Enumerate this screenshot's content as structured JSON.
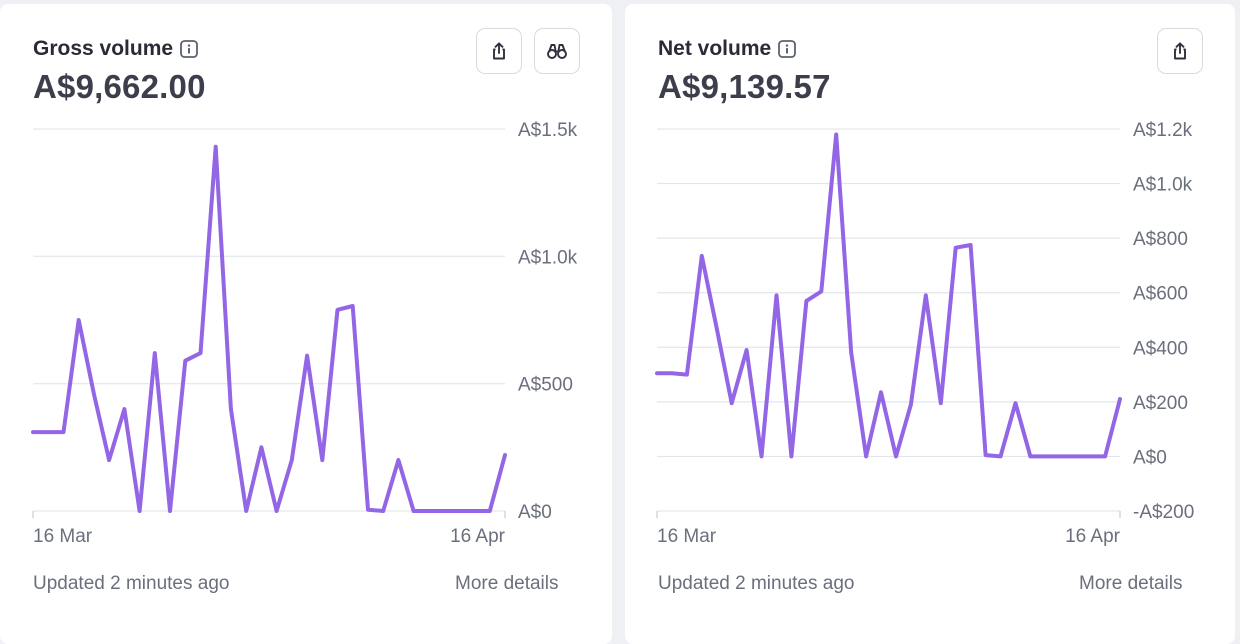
{
  "colors": {
    "line": "#9366e6",
    "grid": "#e3e6ec",
    "text_muted": "#6b6f7d"
  },
  "cards": [
    {
      "title": "Gross volume",
      "amount": "A$9,662.00",
      "footer": {
        "updated": "Updated 2 minutes ago",
        "more": "More details"
      },
      "buttons": [
        "share-icon",
        "binoculars-icon"
      ],
      "chart_data": {
        "type": "line",
        "title": "Gross volume",
        "x_start_label": "16 Mar",
        "x_end_label": "16 Apr",
        "ylim": [
          0,
          1500
        ],
        "ticks": [
          {
            "value": 0,
            "label": "A$0"
          },
          {
            "value": 500,
            "label": "A$500"
          },
          {
            "value": 1000,
            "label": "A$1.0k"
          },
          {
            "value": 1500,
            "label": "A$1.5k"
          }
        ],
        "grid": true,
        "values": [
          310,
          310,
          310,
          750,
          460,
          200,
          400,
          0,
          620,
          0,
          590,
          620,
          1430,
          400,
          0,
          250,
          0,
          200,
          610,
          200,
          790,
          805,
          5,
          0,
          200,
          0,
          0,
          0,
          0,
          0,
          0,
          220
        ]
      }
    },
    {
      "title": "Net volume",
      "amount": "A$9,139.57",
      "footer": {
        "updated": "Updated 2 minutes ago",
        "more": "More details"
      },
      "buttons": [
        "share-icon"
      ],
      "chart_data": {
        "type": "line",
        "title": "Net volume",
        "x_start_label": "16 Mar",
        "x_end_label": "16 Apr",
        "ylim": [
          -200,
          1200
        ],
        "ticks": [
          {
            "value": -200,
            "label": "-A$200"
          },
          {
            "value": 0,
            "label": "A$0"
          },
          {
            "value": 200,
            "label": "A$200"
          },
          {
            "value": 400,
            "label": "A$400"
          },
          {
            "value": 600,
            "label": "A$600"
          },
          {
            "value": 800,
            "label": "A$800"
          },
          {
            "value": 1000,
            "label": "A$1.0k"
          },
          {
            "value": 1200,
            "label": "A$1.2k"
          }
        ],
        "grid": true,
        "values": [
          305,
          305,
          300,
          735,
          470,
          195,
          390,
          0,
          590,
          0,
          570,
          605,
          1180,
          380,
          0,
          235,
          0,
          190,
          590,
          195,
          765,
          775,
          5,
          0,
          195,
          0,
          0,
          0,
          0,
          0,
          0,
          210
        ]
      }
    }
  ]
}
